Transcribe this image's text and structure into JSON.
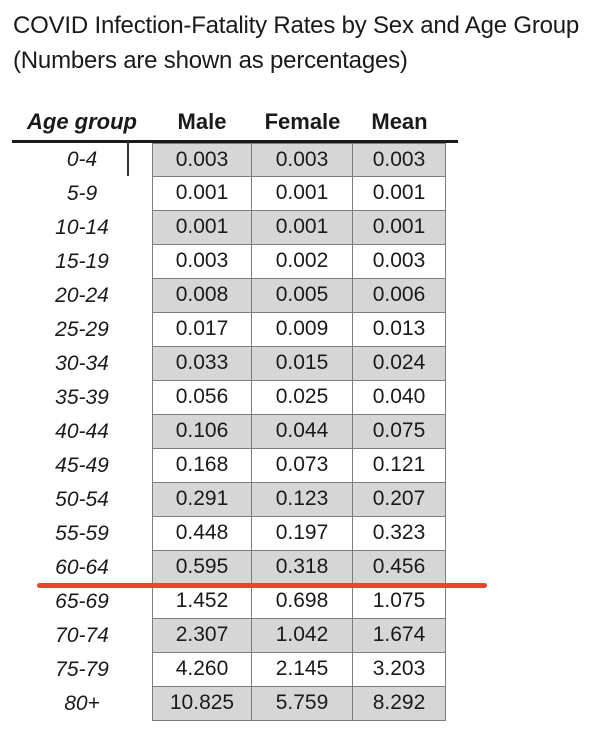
{
  "title": {
    "line1": "COVID Infection-Fatality Rates by Sex and Age Group",
    "line2": "(Numbers are shown as percentages)"
  },
  "colors": {
    "shaded_cell": "#d6d6d6",
    "cell_border": "#7d7d7d",
    "header_rule": "#1b1b1b",
    "red_line": "#e8472b",
    "text": "#1a1a1a"
  },
  "chart_data": {
    "type": "table",
    "title": "COVID Infection-Fatality Rates by Sex and Age Group",
    "subtitle": "(Numbers are shown as percentages)",
    "columns": [
      "Age group",
      "Male",
      "Female",
      "Mean"
    ],
    "rows": [
      [
        "0-4",
        "0.003",
        "0.003",
        "0.003"
      ],
      [
        "5-9",
        "0.001",
        "0.001",
        "0.001"
      ],
      [
        "10-14",
        "0.001",
        "0.001",
        "0.001"
      ],
      [
        "15-19",
        "0.003",
        "0.002",
        "0.003"
      ],
      [
        "20-24",
        "0.008",
        "0.005",
        "0.006"
      ],
      [
        "25-29",
        "0.017",
        "0.009",
        "0.013"
      ],
      [
        "30-34",
        "0.033",
        "0.015",
        "0.024"
      ],
      [
        "35-39",
        "0.056",
        "0.025",
        "0.040"
      ],
      [
        "40-44",
        "0.106",
        "0.044",
        "0.075"
      ],
      [
        "45-49",
        "0.168",
        "0.073",
        "0.121"
      ],
      [
        "50-54",
        "0.291",
        "0.123",
        "0.207"
      ],
      [
        "55-59",
        "0.448",
        "0.197",
        "0.323"
      ],
      [
        "60-64",
        "0.595",
        "0.318",
        "0.456"
      ],
      [
        "65-69",
        "1.452",
        "0.698",
        "1.075"
      ],
      [
        "70-74",
        "2.307",
        "1.042",
        "1.674"
      ],
      [
        "75-79",
        "4.260",
        "2.145",
        "3.203"
      ],
      [
        "80+",
        "10.825",
        "5.759",
        "8.292"
      ]
    ],
    "shading": "alternating rows shaded gray, starting with first row (0-4)",
    "annotation": "thick red-orange horizontal line drawn under the 60-64 row",
    "red_line_after_row": "60-64",
    "legend_position": "none",
    "grid": "cell borders on value columns only"
  }
}
